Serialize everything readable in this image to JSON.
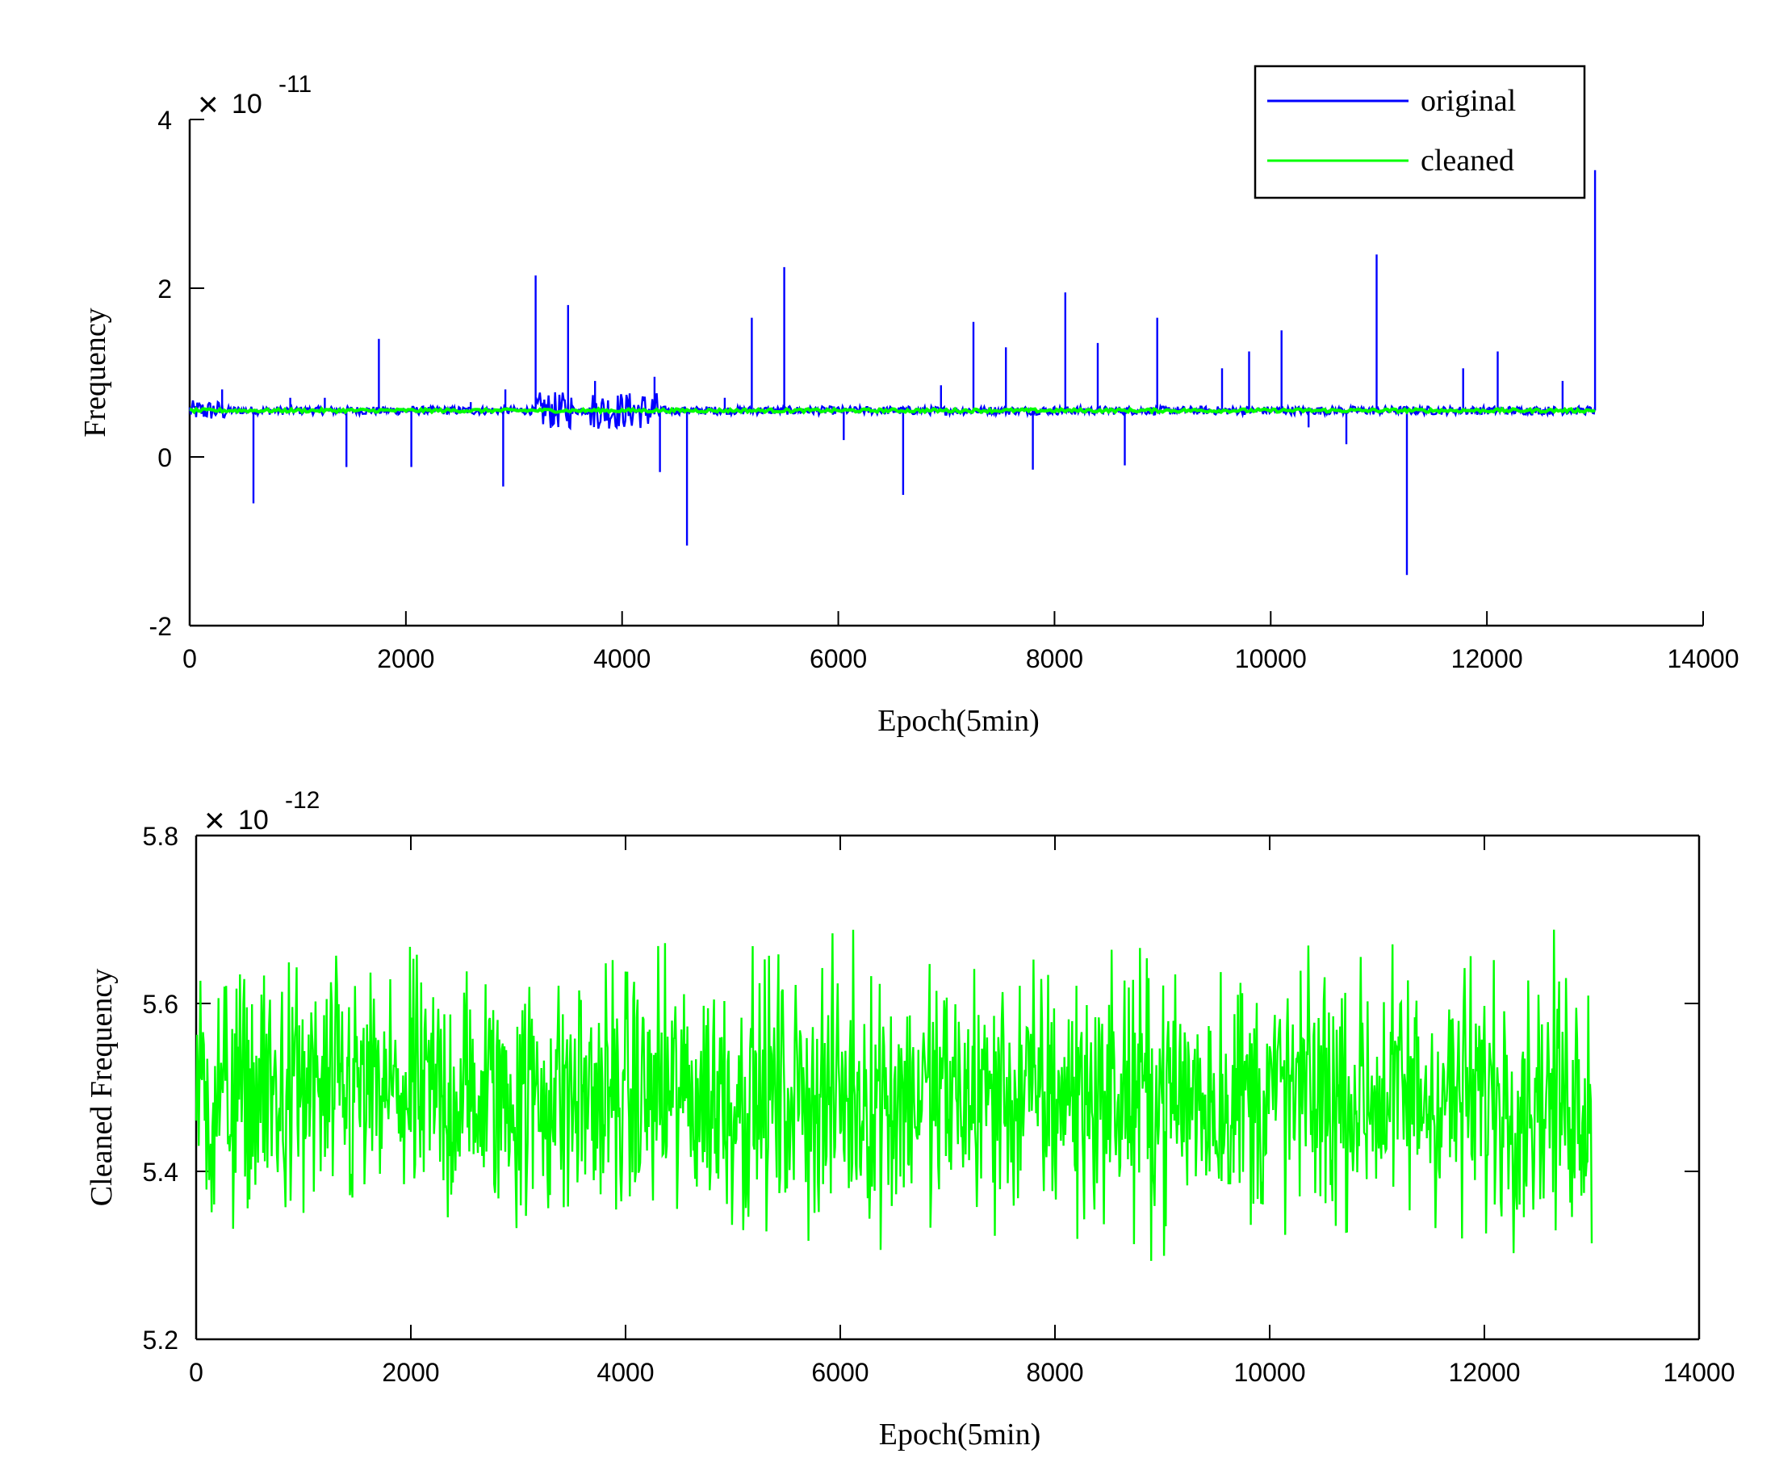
{
  "chart_data": [
    {
      "type": "line",
      "xlabel": "Epoch(5min)",
      "ylabel": "Frequency",
      "y_multiplier": {
        "base": "10",
        "exponent": "-11"
      },
      "xlim": [
        0,
        14000
      ],
      "ylim": [
        -2,
        4
      ],
      "xticks": [
        0,
        2000,
        4000,
        6000,
        8000,
        10000,
        12000,
        14000
      ],
      "yticks": [
        -2,
        0,
        2,
        4
      ],
      "xtick_labels": [
        "0",
        "2000",
        "4000",
        "6000",
        "8000",
        "10000",
        "12000",
        "14000"
      ],
      "ytick_labels": [
        "-2",
        "0",
        "2",
        "4"
      ],
      "legend": {
        "position": "top-right",
        "entries": [
          "original",
          "cleaned"
        ]
      },
      "series": [
        {
          "name": "original",
          "color": "#0000ff",
          "baseline": 0.55,
          "x_end": 13000,
          "spikes": [
            [
              300,
              0.8
            ],
            [
              590,
              -0.55
            ],
            [
              930,
              0.7
            ],
            [
              1250,
              0.7
            ],
            [
              1450,
              -0.12
            ],
            [
              1750,
              1.4
            ],
            [
              2050,
              -0.12
            ],
            [
              2600,
              0.65
            ],
            [
              2900,
              -0.35
            ],
            [
              2920,
              0.8
            ],
            [
              3200,
              2.15
            ],
            [
              3500,
              1.8
            ],
            [
              3750,
              0.9
            ],
            [
              4300,
              0.95
            ],
            [
              4350,
              -0.18
            ],
            [
              4600,
              -1.05
            ],
            [
              4950,
              0.7
            ],
            [
              5200,
              1.65
            ],
            [
              5500,
              2.25
            ],
            [
              6050,
              0.2
            ],
            [
              6600,
              -0.45
            ],
            [
              6950,
              0.85
            ],
            [
              7250,
              1.6
            ],
            [
              7550,
              1.3
            ],
            [
              7800,
              -0.15
            ],
            [
              8100,
              1.95
            ],
            [
              8400,
              1.35
            ],
            [
              8650,
              -0.1
            ],
            [
              8950,
              1.65
            ],
            [
              9550,
              1.05
            ],
            [
              9800,
              1.25
            ],
            [
              10100,
              1.5
            ],
            [
              10350,
              0.35
            ],
            [
              10700,
              0.15
            ],
            [
              10980,
              2.4
            ],
            [
              11260,
              -1.4
            ],
            [
              11780,
              1.05
            ],
            [
              12100,
              1.25
            ],
            [
              12700,
              0.9
            ],
            [
              13000,
              3.4
            ]
          ]
        },
        {
          "name": "cleaned",
          "color": "#00ff00",
          "baseline": 0.55,
          "x_end": 13000
        }
      ]
    },
    {
      "type": "line",
      "xlabel": "Epoch(5min)",
      "ylabel": "Cleaned Frequency",
      "y_multiplier": {
        "base": "10",
        "exponent": "-12"
      },
      "xlim": [
        0,
        14000
      ],
      "ylim": [
        5.2,
        5.8
      ],
      "xticks": [
        0,
        2000,
        4000,
        6000,
        8000,
        10000,
        12000,
        14000
      ],
      "yticks": [
        5.2,
        5.4,
        5.6,
        5.8
      ],
      "xtick_labels": [
        "0",
        "2000",
        "4000",
        "6000",
        "8000",
        "10000",
        "12000",
        "14000"
      ],
      "ytick_labels": [
        "5.2",
        "5.4",
        "5.6",
        "5.8"
      ],
      "series": [
        {
          "name": "cleaned",
          "color": "#00ff00",
          "mean": 5.49,
          "range": [
            5.22,
            5.74
          ],
          "x_end": 13000
        }
      ]
    }
  ]
}
